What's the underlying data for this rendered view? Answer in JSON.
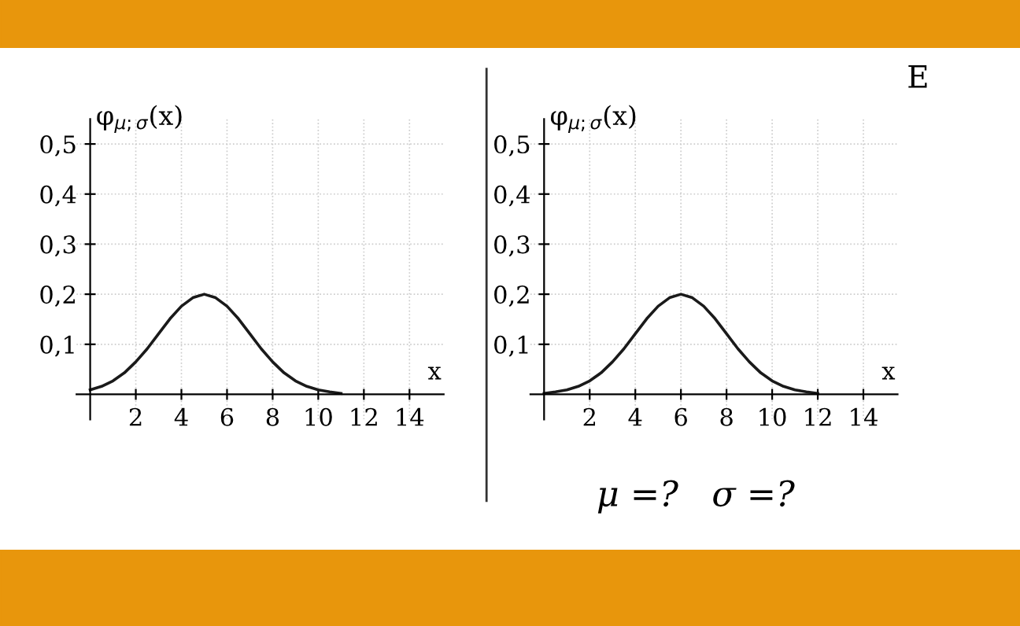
{
  "chart_data": [
    {
      "type": "line",
      "ylabel": "φ$_{μ;σ}$(x)",
      "xlabel": "x",
      "x": [
        0,
        0.5,
        1,
        1.5,
        2,
        2.5,
        3,
        3.5,
        4,
        4.5,
        5,
        5.5,
        6,
        6.5,
        7,
        7.5,
        8,
        8.5,
        9,
        9.5,
        10,
        10.5,
        11
      ],
      "series": [
        {
          "color": "#1a1a1a",
          "values": [
            0.009,
            0.016,
            0.027,
            0.043,
            0.065,
            0.091,
            0.121,
            0.151,
            0.176,
            0.193,
            0.2,
            0.193,
            0.176,
            0.151,
            0.121,
            0.091,
            0.065,
            0.043,
            0.027,
            0.016,
            0.009,
            0.005,
            0.002
          ]
        }
      ],
      "xlim": [
        -0.6,
        15.5
      ],
      "ylim": [
        -0.05,
        0.55
      ],
      "xticks": [
        2,
        4,
        6,
        8,
        10,
        12,
        14
      ],
      "yticks": [
        {
          "value": 0.1,
          "label": "0,1"
        },
        {
          "value": 0.2,
          "label": "0,2"
        },
        {
          "value": 0.3,
          "label": "0,3"
        },
        {
          "value": 0.4,
          "label": "0,4"
        },
        {
          "value": 0.5,
          "label": "0,5"
        }
      ],
      "grid": true,
      "line_style": "solid",
      "marker": "none"
    },
    {
      "type": "line",
      "ylabel": "φ$_{μ;σ}$(x)",
      "xlabel": "x",
      "x": [
        0,
        0.5,
        1,
        1.5,
        2,
        2.5,
        3,
        3.5,
        4,
        4.5,
        5,
        5.5,
        6,
        6.5,
        7,
        7.5,
        8,
        8.5,
        9,
        9.5,
        10,
        10.5,
        11,
        11.5,
        12
      ],
      "series": [
        {
          "color": "#1a1a1a",
          "values": [
            0.002,
            0.005,
            0.009,
            0.016,
            0.027,
            0.043,
            0.065,
            0.091,
            0.121,
            0.151,
            0.176,
            0.193,
            0.2,
            0.193,
            0.176,
            0.151,
            0.121,
            0.091,
            0.065,
            0.043,
            0.027,
            0.016,
            0.009,
            0.005,
            0.002
          ]
        }
      ],
      "xlim": [
        -0.6,
        15.5
      ],
      "ylim": [
        -0.05,
        0.55
      ],
      "xticks": [
        2,
        4,
        6,
        8,
        10,
        12,
        14
      ],
      "yticks": [
        {
          "value": 0.1,
          "label": "0,1"
        },
        {
          "value": 0.2,
          "label": "0,2"
        },
        {
          "value": 0.3,
          "label": "0,3"
        },
        {
          "value": 0.4,
          "label": "0,4"
        },
        {
          "value": 0.5,
          "label": "0,5"
        }
      ],
      "grid": true,
      "line_style": "solid",
      "marker": "none",
      "annotations": [
        "E",
        "μ =?   σ =?"
      ]
    }
  ]
}
